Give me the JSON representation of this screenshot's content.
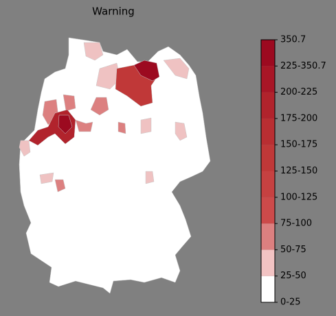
{
  "title": "Warning",
  "colorbar": {
    "labels": [
      "0-25",
      "25-50",
      "50-75",
      "75-100",
      "100-125",
      "125-150",
      "150-175",
      "175-200",
      "200-225",
      "225-350.7",
      "350.7"
    ],
    "colors": [
      "#ffffff",
      "#f2c3c3",
      "#dc8080",
      "#cc4a4a",
      "#c64141",
      "#c03838",
      "#b92e32",
      "#b1232c",
      "#a81626",
      "#9c0a20"
    ]
  }
}
